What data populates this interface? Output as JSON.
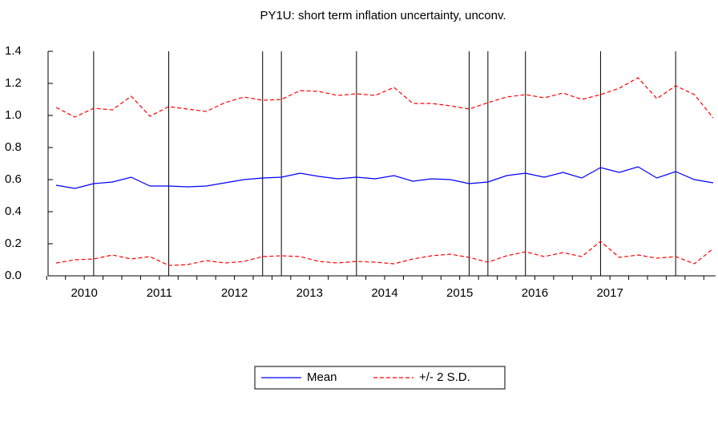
{
  "chart_data": {
    "type": "line",
    "title": "PY1U: short term inflation uncertainty, unconv.",
    "categories": [
      null,
      "2010",
      null,
      null,
      null,
      "2011",
      null,
      null,
      null,
      "2012",
      null,
      null,
      null,
      "2013",
      null,
      null,
      null,
      "2014",
      null,
      null,
      null,
      "2015",
      null,
      null,
      null,
      "2016",
      null,
      null,
      null,
      "2017",
      null,
      null,
      null,
      null,
      null,
      null
    ],
    "series": [
      {
        "name": "Mean",
        "color": "#0000ff",
        "values": [
          0.565,
          0.545,
          0.575,
          0.585,
          0.615,
          0.56,
          0.56,
          0.555,
          0.56,
          0.58,
          0.6,
          0.61,
          0.615,
          0.64,
          0.62,
          0.605,
          0.615,
          0.605,
          0.625,
          0.59,
          0.605,
          0.6,
          0.575,
          0.585,
          0.625,
          0.64,
          0.615,
          0.645,
          0.61,
          0.675,
          0.645,
          0.68,
          0.61,
          0.65,
          0.6,
          0.58
        ]
      },
      {
        "name": "+/- 2 S.D.",
        "color": "#ff0000",
        "dashed": true,
        "upper": [
          1.05,
          0.99,
          1.045,
          1.035,
          1.12,
          0.995,
          1.055,
          1.04,
          1.025,
          1.08,
          1.115,
          1.095,
          1.1,
          1.155,
          1.15,
          1.125,
          1.135,
          1.125,
          1.175,
          1.075,
          1.075,
          1.06,
          1.04,
          1.08,
          1.115,
          1.13,
          1.11,
          1.14,
          1.1,
          1.13,
          1.17,
          1.235,
          1.105,
          1.185,
          1.13,
          0.985
        ],
        "lower": [
          0.08,
          0.1,
          0.105,
          0.13,
          0.105,
          0.12,
          0.065,
          0.07,
          0.095,
          0.08,
          0.09,
          0.12,
          0.125,
          0.12,
          0.09,
          0.08,
          0.09,
          0.085,
          0.075,
          0.105,
          0.125,
          0.135,
          0.115,
          0.085,
          0.125,
          0.15,
          0.12,
          0.145,
          0.12,
          0.215,
          0.115,
          0.13,
          0.11,
          0.12,
          0.075,
          0.17
        ]
      }
    ],
    "event_markers": [
      2,
      6,
      11,
      12,
      16,
      22,
      23,
      25,
      29,
      33
    ],
    "ylim": [
      0,
      1.4
    ],
    "yticks": [
      {
        "value": 0,
        "label": "0.0"
      },
      0.2,
      0.4,
      0.6,
      0.8,
      {
        "value": 1,
        "label": "1.0"
      },
      1.2,
      1.4
    ]
  }
}
